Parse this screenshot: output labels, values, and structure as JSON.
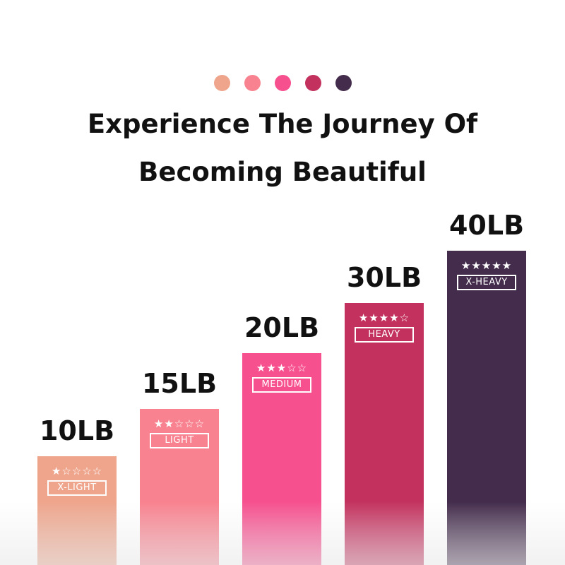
{
  "palette": [
    "#eea58c",
    "#f8828f",
    "#f6508e",
    "#c3325f",
    "#432c4c"
  ],
  "title": {
    "line1": "Experience The Journey Of",
    "line2": "Becoming Beautiful"
  },
  "bands": [
    {
      "weight": "10LB",
      "level": "X-LIGHT",
      "stars": "★☆☆☆☆",
      "rating": 1,
      "color": "#eea58c"
    },
    {
      "weight": "15LB",
      "level": "LIGHT",
      "stars": "★★☆☆☆",
      "rating": 2,
      "color": "#f8828f"
    },
    {
      "weight": "20LB",
      "level": "MEDIUM",
      "stars": "★★★☆☆",
      "rating": 3,
      "color": "#f6508e"
    },
    {
      "weight": "30LB",
      "level": "HEAVY",
      "stars": "★★★★☆",
      "rating": 4,
      "color": "#c3325f"
    },
    {
      "weight": "40LB",
      "level": "X-HEAVY",
      "stars": "★★★★★",
      "rating": 5,
      "color": "#432c4c"
    }
  ]
}
